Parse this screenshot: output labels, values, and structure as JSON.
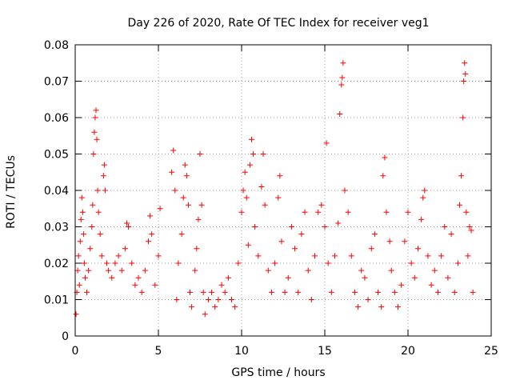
{
  "chart_data": {
    "type": "scatter",
    "title": "Day 226 of 2020, Rate Of TEC Index for receiver veg1",
    "xlabel": "GPS time / hours",
    "ylabel": "ROTI / TECUs",
    "xlim": [
      0,
      25
    ],
    "ylim": [
      0,
      0.08
    ],
    "xticks": [
      "0",
      "5",
      "10",
      "15",
      "20",
      "25"
    ],
    "yticks": [
      "0",
      "0.01",
      "0.02",
      "0.03",
      "0.04",
      "0.05",
      "0.06",
      "0.07",
      "0.08"
    ],
    "grid": true,
    "marker": "+",
    "color": "#ff0000",
    "series": [
      {
        "name": "veg1",
        "points": [
          [
            0.05,
            0.006
          ],
          [
            0.1,
            0.012
          ],
          [
            0.15,
            0.018
          ],
          [
            0.2,
            0.022
          ],
          [
            0.25,
            0.014
          ],
          [
            0.3,
            0.026
          ],
          [
            0.35,
            0.032
          ],
          [
            0.4,
            0.038
          ],
          [
            0.45,
            0.034
          ],
          [
            0.5,
            0.028
          ],
          [
            0.55,
            0.02
          ],
          [
            0.6,
            0.016
          ],
          [
            0.7,
            0.012
          ],
          [
            0.8,
            0.018
          ],
          [
            0.9,
            0.024
          ],
          [
            1.0,
            0.03
          ],
          [
            1.05,
            0.036
          ],
          [
            1.1,
            0.05
          ],
          [
            1.15,
            0.056
          ],
          [
            1.2,
            0.06
          ],
          [
            1.25,
            0.062
          ],
          [
            1.3,
            0.054
          ],
          [
            1.35,
            0.04
          ],
          [
            1.4,
            0.034
          ],
          [
            1.5,
            0.028
          ],
          [
            1.6,
            0.022
          ],
          [
            1.7,
            0.044
          ],
          [
            1.75,
            0.047
          ],
          [
            1.8,
            0.04
          ],
          [
            1.9,
            0.02
          ],
          [
            2.0,
            0.018
          ],
          [
            2.2,
            0.016
          ],
          [
            2.4,
            0.02
          ],
          [
            2.6,
            0.022
          ],
          [
            2.8,
            0.018
          ],
          [
            3.0,
            0.024
          ],
          [
            3.1,
            0.031
          ],
          [
            3.2,
            0.03
          ],
          [
            3.4,
            0.02
          ],
          [
            3.6,
            0.014
          ],
          [
            3.8,
            0.016
          ],
          [
            4.0,
            0.012
          ],
          [
            4.2,
            0.018
          ],
          [
            4.4,
            0.026
          ],
          [
            4.5,
            0.033
          ],
          [
            4.6,
            0.028
          ],
          [
            4.8,
            0.014
          ],
          [
            5.0,
            0.022
          ],
          [
            5.1,
            0.035
          ],
          [
            5.8,
            0.045
          ],
          [
            5.9,
            0.051
          ],
          [
            6.0,
            0.04
          ],
          [
            6.1,
            0.01
          ],
          [
            6.2,
            0.02
          ],
          [
            6.4,
            0.028
          ],
          [
            6.5,
            0.038
          ],
          [
            6.6,
            0.047
          ],
          [
            6.7,
            0.044
          ],
          [
            6.8,
            0.036
          ],
          [
            6.9,
            0.012
          ],
          [
            7.0,
            0.008
          ],
          [
            7.2,
            0.018
          ],
          [
            7.3,
            0.024
          ],
          [
            7.4,
            0.032
          ],
          [
            7.5,
            0.05
          ],
          [
            7.6,
            0.036
          ],
          [
            7.7,
            0.012
          ],
          [
            7.8,
            0.006
          ],
          [
            8.0,
            0.01
          ],
          [
            8.2,
            0.012
          ],
          [
            8.4,
            0.008
          ],
          [
            8.6,
            0.01
          ],
          [
            8.8,
            0.014
          ],
          [
            9.0,
            0.012
          ],
          [
            9.2,
            0.016
          ],
          [
            9.4,
            0.01
          ],
          [
            9.6,
            0.008
          ],
          [
            9.8,
            0.02
          ],
          [
            10.0,
            0.034
          ],
          [
            10.1,
            0.04
          ],
          [
            10.2,
            0.045
          ],
          [
            10.3,
            0.038
          ],
          [
            10.4,
            0.025
          ],
          [
            10.5,
            0.047
          ],
          [
            10.6,
            0.054
          ],
          [
            10.7,
            0.05
          ],
          [
            10.8,
            0.03
          ],
          [
            11.0,
            0.022
          ],
          [
            11.2,
            0.041
          ],
          [
            11.3,
            0.05
          ],
          [
            11.4,
            0.036
          ],
          [
            11.6,
            0.018
          ],
          [
            11.8,
            0.012
          ],
          [
            12.0,
            0.02
          ],
          [
            12.2,
            0.038
          ],
          [
            12.3,
            0.044
          ],
          [
            12.4,
            0.026
          ],
          [
            12.6,
            0.012
          ],
          [
            12.8,
            0.016
          ],
          [
            13.0,
            0.03
          ],
          [
            13.2,
            0.024
          ],
          [
            13.4,
            0.012
          ],
          [
            13.6,
            0.028
          ],
          [
            13.8,
            0.034
          ],
          [
            14.0,
            0.018
          ],
          [
            14.2,
            0.01
          ],
          [
            14.4,
            0.022
          ],
          [
            14.6,
            0.034
          ],
          [
            14.8,
            0.036
          ],
          [
            15.0,
            0.03
          ],
          [
            15.1,
            0.053
          ],
          [
            15.2,
            0.02
          ],
          [
            15.4,
            0.012
          ],
          [
            15.6,
            0.022
          ],
          [
            15.8,
            0.031
          ],
          [
            15.9,
            0.061
          ],
          [
            16.0,
            0.069
          ],
          [
            16.05,
            0.071
          ],
          [
            16.1,
            0.075
          ],
          [
            16.2,
            0.04
          ],
          [
            16.4,
            0.034
          ],
          [
            16.6,
            0.022
          ],
          [
            16.8,
            0.012
          ],
          [
            17.0,
            0.008
          ],
          [
            17.2,
            0.018
          ],
          [
            17.4,
            0.016
          ],
          [
            17.6,
            0.01
          ],
          [
            17.8,
            0.024
          ],
          [
            18.0,
            0.028
          ],
          [
            18.2,
            0.012
          ],
          [
            18.4,
            0.008
          ],
          [
            18.5,
            0.044
          ],
          [
            18.6,
            0.049
          ],
          [
            18.7,
            0.034
          ],
          [
            18.9,
            0.026
          ],
          [
            19.0,
            0.018
          ],
          [
            19.2,
            0.012
          ],
          [
            19.4,
            0.008
          ],
          [
            19.6,
            0.014
          ],
          [
            19.8,
            0.026
          ],
          [
            20.0,
            0.034
          ],
          [
            20.2,
            0.02
          ],
          [
            20.4,
            0.016
          ],
          [
            20.6,
            0.024
          ],
          [
            20.8,
            0.032
          ],
          [
            20.9,
            0.038
          ],
          [
            21.0,
            0.04
          ],
          [
            21.2,
            0.022
          ],
          [
            21.4,
            0.014
          ],
          [
            21.6,
            0.018
          ],
          [
            21.8,
            0.012
          ],
          [
            22.0,
            0.022
          ],
          [
            22.2,
            0.03
          ],
          [
            22.4,
            0.016
          ],
          [
            22.6,
            0.028
          ],
          [
            22.8,
            0.012
          ],
          [
            23.0,
            0.02
          ],
          [
            23.1,
            0.036
          ],
          [
            23.2,
            0.044
          ],
          [
            23.3,
            0.06
          ],
          [
            23.35,
            0.07
          ],
          [
            23.4,
            0.075
          ],
          [
            23.45,
            0.072
          ],
          [
            23.5,
            0.034
          ],
          [
            23.6,
            0.022
          ],
          [
            23.7,
            0.03
          ],
          [
            23.8,
            0.029
          ],
          [
            23.9,
            0.012
          ]
        ]
      }
    ]
  }
}
